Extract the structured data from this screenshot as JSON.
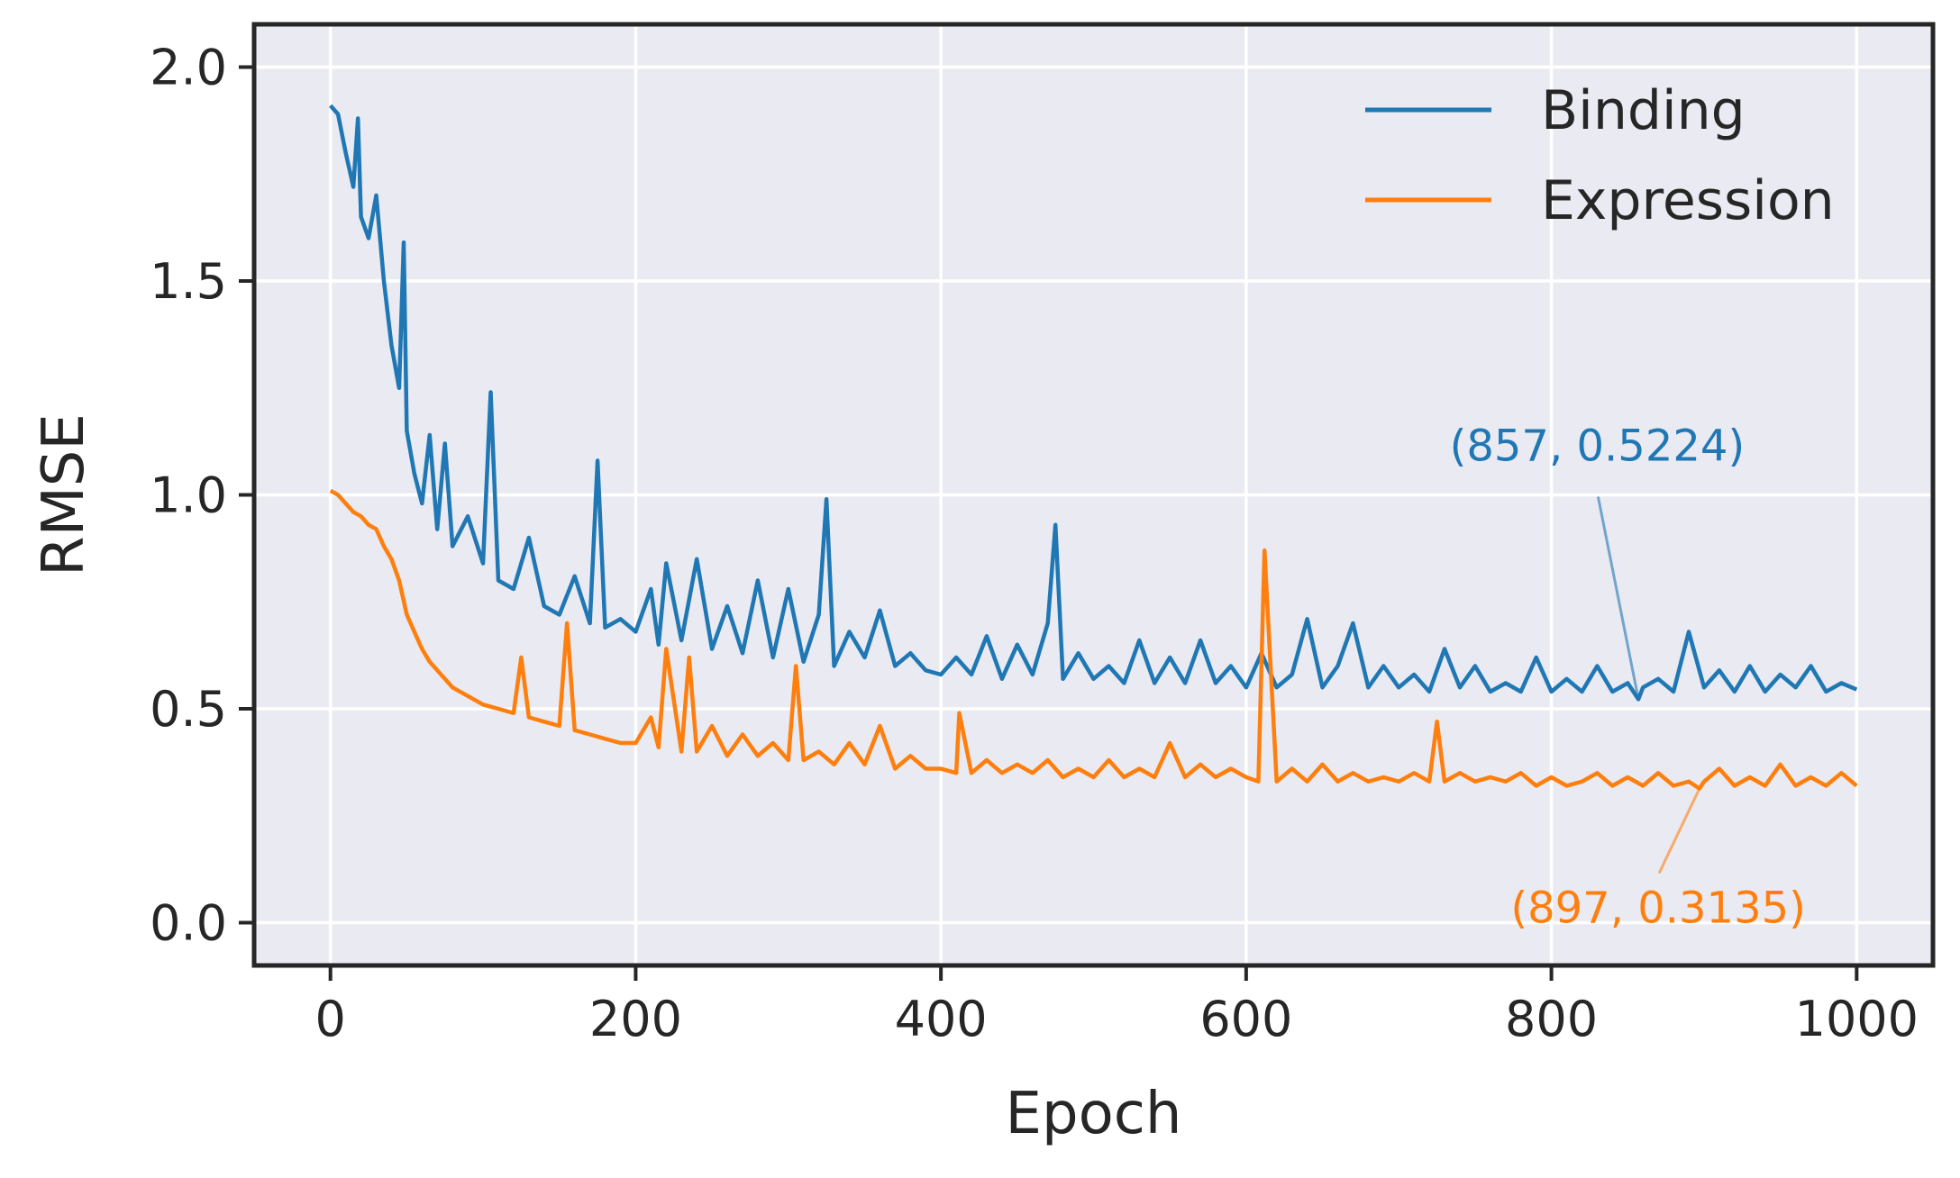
{
  "chart_data": {
    "type": "line",
    "title": "",
    "xlabel": "Epoch",
    "ylabel": "RMSE",
    "xlim": [
      -50,
      1050
    ],
    "ylim": [
      -0.1,
      2.1
    ],
    "xticks": [
      0,
      200,
      400,
      600,
      800,
      1000
    ],
    "yticks": [
      0.0,
      0.5,
      1.0,
      1.5,
      2.0
    ],
    "xtick_labels": [
      "0",
      "200",
      "400",
      "600",
      "800",
      "1000"
    ],
    "ytick_labels": [
      "0.0",
      "0.5",
      "1.0",
      "1.5",
      "2.0"
    ],
    "grid": true,
    "legend_position": "upper right",
    "colors": {
      "background": "#eaeaf2",
      "grid": "#ffffff",
      "spine": "#262626"
    },
    "series": [
      {
        "name": "Binding",
        "color": "#1f77b4",
        "x": [
          0,
          5,
          10,
          15,
          18,
          20,
          25,
          30,
          35,
          40,
          45,
          48,
          50,
          55,
          60,
          65,
          70,
          75,
          80,
          90,
          100,
          105,
          110,
          120,
          130,
          140,
          150,
          160,
          170,
          175,
          180,
          190,
          200,
          210,
          215,
          220,
          230,
          240,
          250,
          260,
          270,
          280,
          290,
          300,
          310,
          320,
          325,
          330,
          340,
          350,
          360,
          370,
          380,
          390,
          400,
          410,
          420,
          430,
          440,
          450,
          460,
          470,
          475,
          480,
          490,
          500,
          510,
          520,
          530,
          540,
          550,
          560,
          570,
          580,
          590,
          600,
          610,
          620,
          630,
          640,
          650,
          660,
          670,
          680,
          690,
          700,
          710,
          720,
          730,
          740,
          750,
          760,
          770,
          780,
          790,
          800,
          810,
          820,
          830,
          840,
          850,
          857,
          860,
          870,
          880,
          890,
          900,
          910,
          920,
          930,
          940,
          950,
          960,
          970,
          980,
          990,
          1000
        ],
        "y": [
          1.91,
          1.89,
          1.8,
          1.72,
          1.88,
          1.65,
          1.6,
          1.7,
          1.5,
          1.35,
          1.25,
          1.59,
          1.15,
          1.05,
          0.98,
          1.14,
          0.92,
          1.12,
          0.88,
          0.95,
          0.84,
          1.24,
          0.8,
          0.78,
          0.9,
          0.74,
          0.72,
          0.81,
          0.7,
          1.08,
          0.69,
          0.71,
          0.68,
          0.78,
          0.65,
          0.84,
          0.66,
          0.85,
          0.64,
          0.74,
          0.63,
          0.8,
          0.62,
          0.78,
          0.61,
          0.72,
          0.99,
          0.6,
          0.68,
          0.62,
          0.73,
          0.6,
          0.63,
          0.59,
          0.58,
          0.62,
          0.58,
          0.67,
          0.57,
          0.65,
          0.58,
          0.7,
          0.93,
          0.57,
          0.63,
          0.57,
          0.6,
          0.56,
          0.66,
          0.56,
          0.62,
          0.56,
          0.66,
          0.56,
          0.6,
          0.55,
          0.63,
          0.55,
          0.58,
          0.71,
          0.55,
          0.6,
          0.7,
          0.55,
          0.6,
          0.55,
          0.58,
          0.54,
          0.64,
          0.55,
          0.6,
          0.54,
          0.56,
          0.54,
          0.62,
          0.54,
          0.57,
          0.54,
          0.6,
          0.54,
          0.56,
          0.5224,
          0.55,
          0.57,
          0.54,
          0.68,
          0.55,
          0.59,
          0.54,
          0.6,
          0.54,
          0.58,
          0.55,
          0.6,
          0.54,
          0.56,
          0.545
        ]
      },
      {
        "name": "Expression",
        "color": "#ff7f0e",
        "x": [
          0,
          5,
          10,
          15,
          20,
          25,
          30,
          35,
          40,
          45,
          50,
          55,
          60,
          65,
          70,
          75,
          80,
          90,
          100,
          110,
          120,
          125,
          130,
          140,
          150,
          155,
          160,
          170,
          180,
          190,
          200,
          210,
          215,
          220,
          230,
          235,
          240,
          250,
          260,
          270,
          280,
          290,
          300,
          305,
          310,
          320,
          330,
          340,
          350,
          360,
          370,
          380,
          390,
          400,
          410,
          412,
          420,
          430,
          440,
          450,
          460,
          470,
          480,
          490,
          500,
          510,
          520,
          530,
          540,
          550,
          560,
          570,
          580,
          590,
          600,
          608,
          612,
          620,
          630,
          640,
          650,
          660,
          670,
          680,
          690,
          700,
          710,
          720,
          725,
          730,
          740,
          750,
          760,
          770,
          780,
          790,
          800,
          810,
          820,
          830,
          840,
          850,
          860,
          870,
          880,
          890,
          897,
          900,
          910,
          920,
          930,
          940,
          950,
          960,
          970,
          980,
          990,
          1000
        ],
        "y": [
          1.01,
          1.0,
          0.98,
          0.96,
          0.95,
          0.93,
          0.92,
          0.88,
          0.85,
          0.8,
          0.72,
          0.68,
          0.64,
          0.61,
          0.59,
          0.57,
          0.55,
          0.53,
          0.51,
          0.5,
          0.49,
          0.62,
          0.48,
          0.47,
          0.46,
          0.7,
          0.45,
          0.44,
          0.43,
          0.42,
          0.42,
          0.48,
          0.41,
          0.64,
          0.4,
          0.62,
          0.4,
          0.46,
          0.39,
          0.44,
          0.39,
          0.42,
          0.38,
          0.6,
          0.38,
          0.4,
          0.37,
          0.42,
          0.37,
          0.46,
          0.36,
          0.39,
          0.36,
          0.36,
          0.35,
          0.49,
          0.35,
          0.38,
          0.35,
          0.37,
          0.35,
          0.38,
          0.34,
          0.36,
          0.34,
          0.38,
          0.34,
          0.36,
          0.34,
          0.42,
          0.34,
          0.37,
          0.34,
          0.36,
          0.34,
          0.33,
          0.87,
          0.33,
          0.36,
          0.33,
          0.37,
          0.33,
          0.35,
          0.33,
          0.34,
          0.33,
          0.35,
          0.33,
          0.47,
          0.33,
          0.35,
          0.33,
          0.34,
          0.33,
          0.35,
          0.32,
          0.34,
          0.32,
          0.33,
          0.35,
          0.32,
          0.34,
          0.32,
          0.35,
          0.32,
          0.33,
          0.3135,
          0.33,
          0.36,
          0.32,
          0.34,
          0.32,
          0.37,
          0.32,
          0.34,
          0.32,
          0.35,
          0.32
        ]
      }
    ],
    "annotations": [
      {
        "text": "(857, 0.5224)",
        "series": "Binding",
        "x": 857,
        "y": 0.5224,
        "text_x": 830,
        "text_y": 1.08,
        "color": "#1f77b4"
      },
      {
        "text": "(897, 0.3135)",
        "series": "Expression",
        "x": 897,
        "y": 0.3135,
        "text_x": 870,
        "text_y": 0.0,
        "color": "#ff7f0e"
      }
    ]
  }
}
